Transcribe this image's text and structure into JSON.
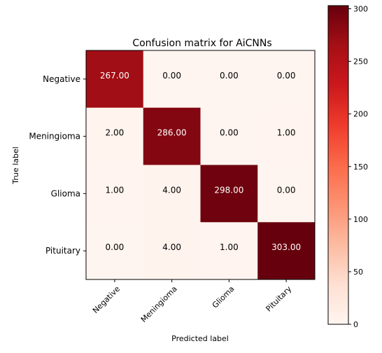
{
  "chart_data": {
    "type": "heatmap",
    "title": "Confusion matrix for AiCNNs",
    "xlabel": "Predicted label",
    "ylabel": "True label",
    "row_labels": [
      "Negative",
      "Meningioma",
      "Glioma",
      "Pituitary"
    ],
    "col_labels": [
      "Negative",
      "Meningioma",
      "Glioma",
      "Pituitary"
    ],
    "values": [
      [
        267.0,
        0.0,
        0.0,
        0.0
      ],
      [
        2.0,
        286.0,
        0.0,
        1.0
      ],
      [
        1.0,
        4.0,
        298.0,
        0.0
      ],
      [
        0.0,
        4.0,
        1.0,
        303.0
      ]
    ],
    "value_format_decimals": 2,
    "colormap": "Reds",
    "colorbar": {
      "range": [
        0,
        303
      ],
      "ticks": [
        0,
        50,
        100,
        150,
        200,
        250,
        300
      ]
    },
    "colors": {
      "text_on_dark": "#ffffff",
      "text_on_light": "#000000"
    }
  }
}
